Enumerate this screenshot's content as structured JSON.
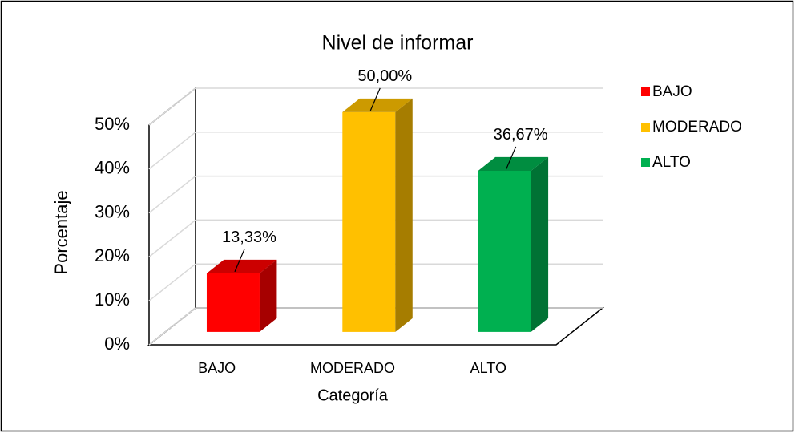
{
  "chart_data": {
    "type": "bar3d",
    "title": "Nivel de informar",
    "x_label": "Categoría",
    "y_label": "Porcentaje",
    "categories": [
      "BAJO",
      "MODERADO",
      "ALTO"
    ],
    "series": [
      {
        "name": "BAJO",
        "color": "#ff0000"
      },
      {
        "name": "MODERADO",
        "color": "#ffc000"
      },
      {
        "name": "ALTO",
        "color": "#00b050"
      }
    ],
    "values": [
      13.33,
      50,
      36.67
    ],
    "value_labels": [
      "13,33%",
      "50,00%",
      "36,67%"
    ],
    "ylim": [
      0,
      50
    ],
    "yticks": [
      {
        "value": 0,
        "label": "0%"
      },
      {
        "value": 10,
        "label": "10%"
      },
      {
        "value": 20,
        "label": "20%"
      },
      {
        "value": 30,
        "label": "30%"
      },
      {
        "value": 40,
        "label": "40%"
      },
      {
        "value": 50,
        "label": "50%"
      }
    ],
    "grid": true,
    "legend": "right"
  }
}
